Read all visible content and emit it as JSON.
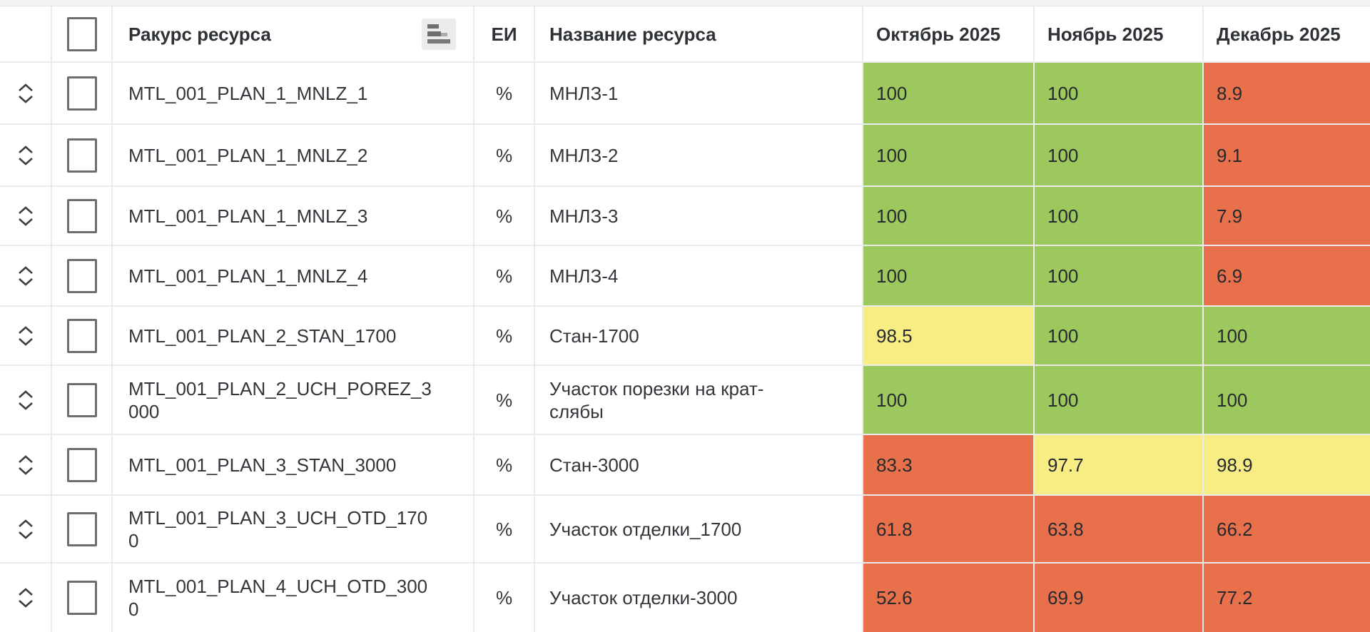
{
  "table": {
    "columns": {
      "resource_view": "Ракурс ресурса",
      "unit": "ЕИ",
      "resource_name": "Название ресурса",
      "months": [
        "Октябрь 2025",
        "Ноябрь 2025",
        "Декабрь 2025"
      ]
    },
    "rows": [
      {
        "code": "MTL_001_PLAN_1_MNLZ_1",
        "unit": "%",
        "name": "МНЛЗ-1",
        "values": [
          {
            "text": "100",
            "status": "green"
          },
          {
            "text": "100",
            "status": "green"
          },
          {
            "text": "8.9",
            "status": "red"
          }
        ]
      },
      {
        "code": "MTL_001_PLAN_1_MNLZ_2",
        "unit": "%",
        "name": "МНЛЗ-2",
        "values": [
          {
            "text": "100",
            "status": "green"
          },
          {
            "text": "100",
            "status": "green"
          },
          {
            "text": "9.1",
            "status": "red"
          }
        ]
      },
      {
        "code": "MTL_001_PLAN_1_MNLZ_3",
        "unit": "%",
        "name": "МНЛЗ-3",
        "values": [
          {
            "text": "100",
            "status": "green"
          },
          {
            "text": "100",
            "status": "green"
          },
          {
            "text": "7.9",
            "status": "red"
          }
        ]
      },
      {
        "code": "MTL_001_PLAN_1_MNLZ_4",
        "unit": "%",
        "name": "МНЛЗ-4",
        "values": [
          {
            "text": "100",
            "status": "green"
          },
          {
            "text": "100",
            "status": "green"
          },
          {
            "text": "6.9",
            "status": "red"
          }
        ]
      },
      {
        "code": "MTL_001_PLAN_2_STAN_1700",
        "unit": "%",
        "name": "Стан-1700",
        "values": [
          {
            "text": "98.5",
            "status": "yellow"
          },
          {
            "text": "100",
            "status": "green"
          },
          {
            "text": "100",
            "status": "green"
          }
        ]
      },
      {
        "code": "MTL_001_PLAN_2_UCH_POREZ_3\n000",
        "unit": "%",
        "name": "Участок порезки на крат-\nслябы",
        "values": [
          {
            "text": "100",
            "status": "green"
          },
          {
            "text": "100",
            "status": "green"
          },
          {
            "text": "100",
            "status": "green"
          }
        ]
      },
      {
        "code": "MTL_001_PLAN_3_STAN_3000",
        "unit": "%",
        "name": "Стан-3000",
        "values": [
          {
            "text": "83.3",
            "status": "red"
          },
          {
            "text": "97.7",
            "status": "yellow"
          },
          {
            "text": "98.9",
            "status": "yellow"
          }
        ]
      },
      {
        "code": "MTL_001_PLAN_3_UCH_OTD_170\n0",
        "unit": "%",
        "name": "Участок отделки_1700",
        "values": [
          {
            "text": "61.8",
            "status": "red"
          },
          {
            "text": "63.8",
            "status": "red"
          },
          {
            "text": "66.2",
            "status": "red"
          }
        ]
      },
      {
        "code": "MTL_001_PLAN_4_UCH_OTD_300\n0",
        "unit": "%",
        "name": "Участок отделки-3000",
        "values": [
          {
            "text": "52.6",
            "status": "red"
          },
          {
            "text": "69.9",
            "status": "red"
          },
          {
            "text": "77.2",
            "status": "red"
          }
        ]
      }
    ]
  },
  "colors": {
    "green": "#9DC85E",
    "yellow": "#F8ED84",
    "red": "#E8714C"
  }
}
